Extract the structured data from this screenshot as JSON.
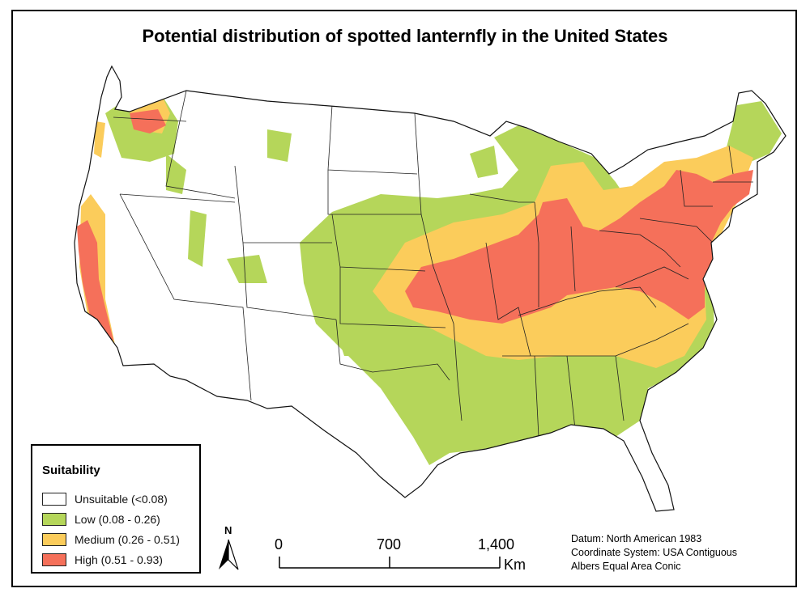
{
  "title": "Potential distribution of spotted lanternfly in the United States",
  "legend": {
    "title": "Suitability",
    "items": [
      {
        "label": "Unsuitable (<0.08)",
        "color": "#ffffff"
      },
      {
        "label": "Low (0.08 - 0.26)",
        "color": "#b5d65a"
      },
      {
        "label": "Medium (0.26 - 0.51)",
        "color": "#fbcc5b"
      },
      {
        "label": "High (0.51 - 0.93)",
        "color": "#f5705a"
      }
    ]
  },
  "scale_bar": {
    "ticks": [
      "0",
      "700",
      "1,400"
    ],
    "unit": "Km"
  },
  "north_arrow": {
    "letter": "N"
  },
  "datum": {
    "line1": "Datum: North American 1983",
    "line2": "Coordinate System: USA Contiguous",
    "line3": "Albers Equal Area Conic"
  },
  "colors": {
    "unsuitable": "#ffffff",
    "low": "#b5d65a",
    "medium": "#fbcc5b",
    "high": "#f5705a",
    "border": "#222222"
  }
}
